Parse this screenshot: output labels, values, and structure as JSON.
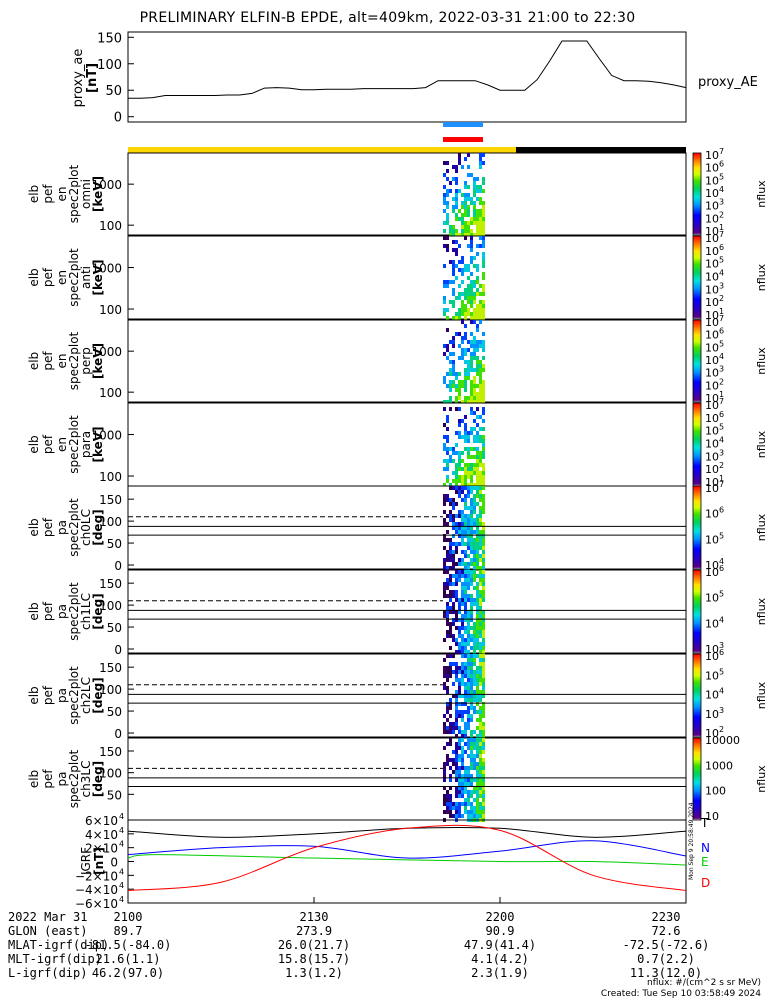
{
  "title": "PRELIMINARY ELFIN-B EPDE, alt=409km, 2022-03-31 21:00 to 22:30",
  "ae_panel": {
    "ylabel": [
      "proxy_ae",
      "[nT]"
    ],
    "yticks": [
      "150",
      "100",
      "50",
      "0"
    ],
    "ytick_values": [
      150,
      100,
      50,
      0
    ],
    "ylim": [
      -10,
      160
    ],
    "series_label": "proxy_AE",
    "series": [
      [
        0,
        35
      ],
      [
        2,
        35
      ],
      [
        4,
        36
      ],
      [
        6,
        40
      ],
      [
        8,
        40
      ],
      [
        10,
        40
      ],
      [
        12,
        40
      ],
      [
        14,
        40
      ],
      [
        16,
        41
      ],
      [
        18,
        41
      ],
      [
        20,
        44
      ],
      [
        22,
        54
      ],
      [
        24,
        55
      ],
      [
        26,
        54
      ],
      [
        28,
        51
      ],
      [
        30,
        51
      ],
      [
        32,
        52
      ],
      [
        34,
        52
      ],
      [
        36,
        52
      ],
      [
        38,
        53
      ],
      [
        40,
        53
      ],
      [
        42,
        53
      ],
      [
        44,
        53
      ],
      [
        46,
        53
      ],
      [
        48,
        55
      ],
      [
        50,
        68
      ],
      [
        52,
        68
      ],
      [
        54,
        68
      ],
      [
        56,
        68
      ],
      [
        58,
        60
      ],
      [
        60,
        50
      ],
      [
        62,
        50
      ],
      [
        64,
        50
      ],
      [
        66,
        70
      ],
      [
        68,
        105
      ],
      [
        70,
        143
      ],
      [
        72,
        143
      ],
      [
        74,
        143
      ],
      [
        76,
        110
      ],
      [
        78,
        78
      ],
      [
        80,
        68
      ],
      [
        82,
        68
      ],
      [
        84,
        67
      ],
      [
        86,
        64
      ],
      [
        88,
        60
      ],
      [
        90,
        55
      ]
    ]
  },
  "spec_panels": [
    {
      "ylabel": [
        "elb",
        "pef",
        "en",
        "spec2plot",
        "omni",
        "[keV]"
      ],
      "yticks": [
        "1000",
        "100"
      ],
      "cbar_ticks": [
        "10",
        "10",
        "10",
        "10",
        "10",
        "10",
        "10"
      ],
      "cbar_exps": [
        "7",
        "6",
        "5",
        "4",
        "3",
        "2",
        "1"
      ]
    },
    {
      "ylabel": [
        "elb",
        "pef",
        "en",
        "spec2plot",
        "anti",
        "[keV]"
      ],
      "yticks": [
        "1000",
        "100"
      ],
      "cbar_ticks": [
        "10",
        "10",
        "10",
        "10",
        "10",
        "10",
        "10"
      ],
      "cbar_exps": [
        "7",
        "6",
        "5",
        "4",
        "3",
        "2",
        "1"
      ]
    },
    {
      "ylabel": [
        "elb",
        "pef",
        "en",
        "spec2plot",
        "perp",
        "[keV]"
      ],
      "yticks": [
        "1000",
        "100"
      ],
      "cbar_ticks": [
        "10",
        "10",
        "10",
        "10",
        "10",
        "10",
        "10"
      ],
      "cbar_exps": [
        "7",
        "6",
        "5",
        "4",
        "3",
        "2",
        "1"
      ]
    },
    {
      "ylabel": [
        "elb",
        "pef",
        "en",
        "spec2plot",
        "para",
        "[keV]"
      ],
      "yticks": [
        "1000",
        "100"
      ],
      "cbar_ticks": [
        "10",
        "10",
        "10",
        "10",
        "10",
        "10",
        "10"
      ],
      "cbar_exps": [
        "7",
        "6",
        "5",
        "4",
        "3",
        "2",
        "1"
      ]
    }
  ],
  "pa_panels": [
    {
      "ylabel": [
        "elb",
        "pef",
        "pa",
        "spec2plot",
        "ch0LC",
        "[deg]"
      ],
      "yticks": [
        "150",
        "100",
        "50",
        "0"
      ],
      "cbar_ticks": [
        "10",
        "10",
        "10",
        "10"
      ],
      "cbar_exps": [
        "7",
        "6",
        "5",
        "4"
      ]
    },
    {
      "ylabel": [
        "elb",
        "pef",
        "pa",
        "spec2plot",
        "ch1LC",
        "[deg]"
      ],
      "yticks": [
        "150",
        "100",
        "50",
        "0"
      ],
      "cbar_ticks": [
        "10",
        "10",
        "10",
        "10"
      ],
      "cbar_exps": [
        "6",
        "5",
        "4",
        "3"
      ]
    },
    {
      "ylabel": [
        "elb",
        "pef",
        "pa",
        "spec2plot",
        "ch2LC",
        "[deg]"
      ],
      "yticks": [
        "150",
        "100",
        "50",
        "0"
      ],
      "cbar_ticks": [
        "10",
        "10",
        "10",
        "10",
        "10"
      ],
      "cbar_exps": [
        "6",
        "5",
        "4",
        "3",
        "2"
      ]
    },
    {
      "ylabel": [
        "elb",
        "pef",
        "pa",
        "spec2plot",
        "ch3LC",
        "[deg]"
      ],
      "yticks": [
        "150",
        "100",
        "50"
      ],
      "cbar_ticks": [
        "10000",
        "1000",
        "100",
        "10"
      ],
      "cbar_exps": [
        "",
        "",
        "",
        ""
      ]
    }
  ],
  "cbar_label": "nflux",
  "igrf_panel": {
    "ylabel": [
      "IGRF",
      "[nT]"
    ],
    "yticks": [
      "6×10",
      "4×10",
      "2×10",
      "0",
      "−2×10",
      "−4×10",
      "−6×10"
    ],
    "ytick_exp": "4",
    "ylim": [
      -60000,
      60000
    ],
    "legend": [
      {
        "name": "T",
        "color": "#000000"
      },
      {
        "name": "N",
        "color": "#0000ff"
      },
      {
        "name": "E",
        "color": "#00cc00"
      },
      {
        "name": "D",
        "color": "#ff0000"
      }
    ],
    "side_stamp": "Mon Sep 9 20:58:49 2024"
  },
  "chart_data": {
    "type": "line",
    "title": "PRELIMINARY ELFIN-B EPDE, alt=409km, 2022-03-31 21:00 to 22:30",
    "x_ticks": [
      "2100",
      "2130",
      "2200",
      "2230"
    ],
    "series": [
      {
        "name": "proxy_AE",
        "x_minutes": [
          0,
          10,
          20,
          22,
          30,
          40,
          48,
          50,
          56,
          60,
          64,
          66,
          68,
          70,
          74,
          76,
          78,
          82,
          86,
          90
        ],
        "values": [
          35,
          40,
          44,
          54,
          51,
          52,
          55,
          68,
          68,
          50,
          50,
          70,
          105,
          143,
          143,
          110,
          78,
          68,
          64,
          55
        ]
      },
      {
        "name": "T",
        "x_minutes": [
          0,
          15,
          30,
          45,
          60,
          75,
          90
        ],
        "values": [
          44000,
          35000,
          40000,
          48000,
          48000,
          35000,
          44000
        ]
      },
      {
        "name": "N",
        "x_minutes": [
          0,
          15,
          30,
          45,
          60,
          75,
          90
        ],
        "values": [
          10000,
          20000,
          22000,
          5000,
          15000,
          30000,
          8000
        ]
      },
      {
        "name": "E",
        "x_minutes": [
          0,
          5,
          30,
          60,
          75,
          90
        ],
        "values": [
          5000,
          10000,
          5000,
          0,
          0,
          -5000
        ]
      },
      {
        "name": "D",
        "x_minutes": [
          0,
          15,
          30,
          45,
          60,
          75,
          90
        ],
        "values": [
          -42000,
          -30000,
          20000,
          48000,
          45000,
          -20000,
          -42000
        ]
      }
    ]
  },
  "footer": {
    "rows": [
      {
        "label": "2022 Mar 31",
        "values": [
          "2100",
          "2130",
          "2200",
          "2230"
        ]
      },
      {
        "label": "GLON (east)",
        "values": [
          "89.7",
          "273.9",
          "90.9",
          "72.6"
        ]
      },
      {
        "label": "MLAT-igrf(dip)",
        "values": [
          "-81.5(-84.0)",
          "26.0(21.7)",
          "47.9(41.4)",
          "-72.5(-72.6)"
        ]
      },
      {
        "label": "MLT-igrf(dip)",
        "values": [
          "21.6(1.1)",
          "15.8(15.7)",
          "4.1(4.2)",
          "0.7(2.2)"
        ]
      },
      {
        "label": "L-igrf(dip)",
        "values": [
          "46.2(97.0)",
          "1.3(1.2)",
          "2.3(1.9)",
          "11.3(12.0)"
        ]
      }
    ],
    "note_units": "nflux: #/(cm^2 s sr MeV)",
    "note_created": "Created: Tue Sep 10 03:58:49 2024"
  }
}
